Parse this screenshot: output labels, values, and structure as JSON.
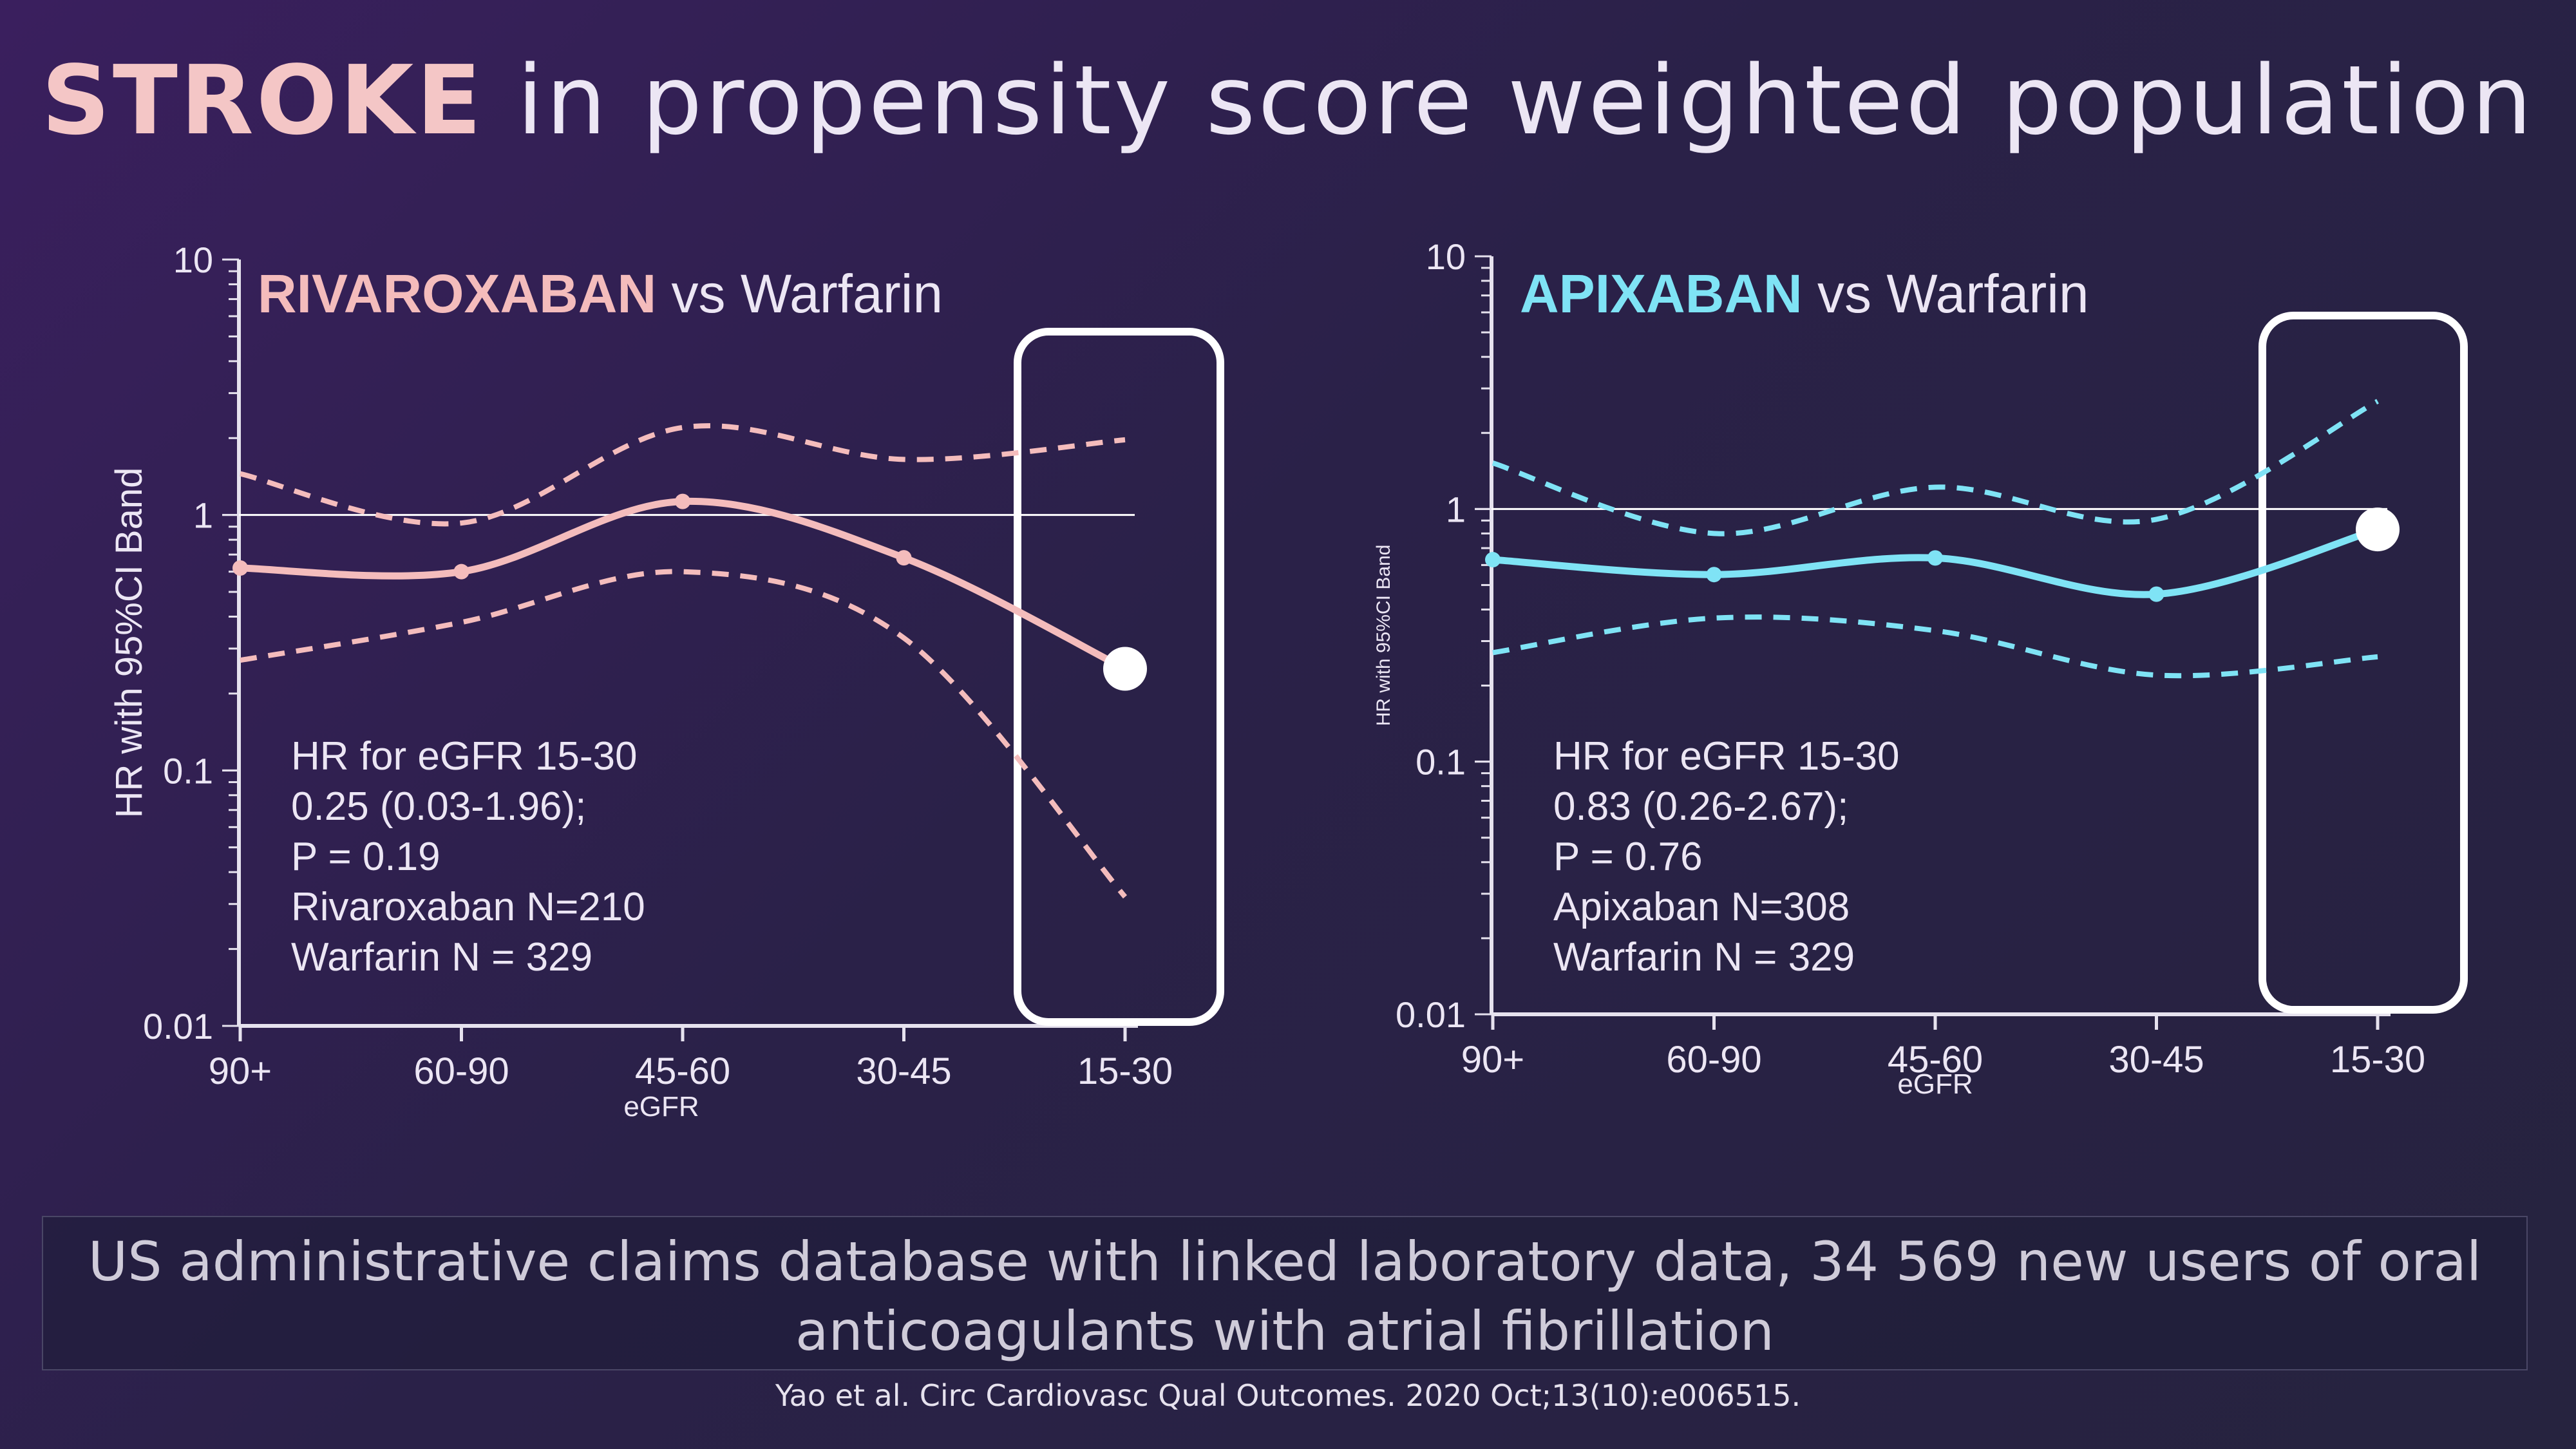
{
  "title": {
    "emphasis": "STROKE",
    "rest": " in propensity score weighted population"
  },
  "colors": {
    "rivaroxaban": "#f4bcbc",
    "apixaban": "#7fe3f5",
    "axis": "#e6e2ee",
    "reference": "#ffffff"
  },
  "chart_data": [
    {
      "type": "line",
      "title_emphasis": "RIVAROXABAN",
      "title_rest": " vs Warfarin",
      "ylabel": "HR with 95%CI Band",
      "xlabel": "eGFR",
      "y_scale": "log",
      "ylim": [
        0.01,
        10
      ],
      "y_ticks": [
        "10",
        "1",
        "0.1",
        "0.01"
      ],
      "categories": [
        "90+",
        "60-90",
        "45-60",
        "30-45",
        "15-30"
      ],
      "series": [
        {
          "values": [
            0.62,
            0.6,
            1.13,
            0.68,
            0.25
          ]
        },
        {
          "values": [
            1.45,
            0.93,
            2.2,
            1.65,
            1.97
          ]
        },
        {
          "values": [
            0.27,
            0.38,
            0.6,
            0.33,
            0.032
          ]
        }
      ],
      "reference_line": 1,
      "highlight_category": "15-30",
      "annotation": [
        "HR for eGFR 15-30",
        "0.25 (0.03-1.96);",
        "P = 0.19",
        "Rivaroxaban N=210",
        "Warfarin N = 329"
      ]
    },
    {
      "type": "line",
      "title_emphasis": "APIXABAN",
      "title_rest": " vs Warfarin",
      "ylabel": "HR with 95%CI Band",
      "xlabel": "eGFR",
      "y_scale": "log",
      "ylim": [
        0.01,
        10
      ],
      "y_ticks": [
        "10",
        "1",
        "0.1",
        "0.01"
      ],
      "categories": [
        "90+",
        "60-90",
        "45-60",
        "30-45",
        "15-30"
      ],
      "series": [
        {
          "values": [
            0.63,
            0.55,
            0.64,
            0.46,
            0.83
          ]
        },
        {
          "values": [
            1.52,
            0.8,
            1.22,
            0.91,
            2.67
          ]
        },
        {
          "values": [
            0.27,
            0.37,
            0.33,
            0.22,
            0.26
          ]
        }
      ],
      "reference_line": 1,
      "highlight_category": "15-30",
      "annotation": [
        "HR for eGFR 15-30",
        "0.83 (0.26-2.67);",
        "P = 0.76",
        "Apixaban N=308",
        "Warfarin N = 329"
      ]
    }
  ],
  "footer": {
    "source_line1": "US administrative claims database with linked laboratory data, 34 569 new users of oral",
    "source_line2": "anticoagulants with atrial fibrillation",
    "citation": "Yao et al. Circ Cardiovasc Qual Outcomes. 2020 Oct;13(10):e006515."
  }
}
